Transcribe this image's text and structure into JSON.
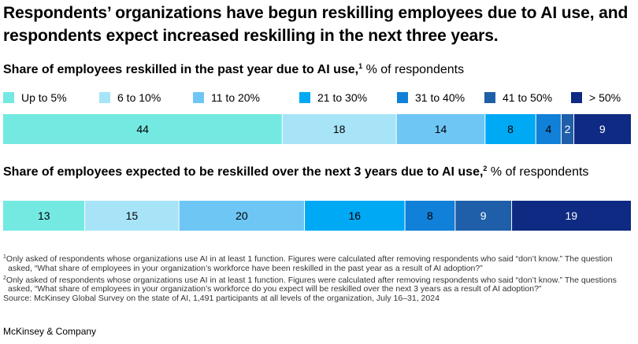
{
  "title": "Respondents’ organizations have begun reskilling employees due to AI use, and respondents expect increased reskilling in the next three years.",
  "legend": [
    {
      "label": "Up to 5%",
      "color": "#74e9e2"
    },
    {
      "label": "6 to 10%",
      "color": "#a8e4f7"
    },
    {
      "label": "11 to 20%",
      "color": "#6ec6f5"
    },
    {
      "label": "21 to 30%",
      "color": "#00a9f4"
    },
    {
      "label": "31 to 40%",
      "color": "#1080d8"
    },
    {
      "label": "41 to 50%",
      "color": "#1f5ea8"
    },
    {
      "label": "> 50%",
      "color": "#0f2a83"
    }
  ],
  "chart_data": [
    {
      "type": "bar",
      "orientation": "horizontal-stacked-100",
      "title": "Share of employees reskilled in the past year due to AI use,",
      "title_footnote": "1",
      "unit": "% of respondents",
      "categories": [
        "Up to 5%",
        "6 to 10%",
        "11 to 20%",
        "21 to 30%",
        "31 to 40%",
        "41 to 50%",
        "> 50%"
      ],
      "values": [
        44,
        18,
        14,
        8,
        4,
        2,
        9
      ]
    },
    {
      "type": "bar",
      "orientation": "horizontal-stacked-100",
      "title": "Share of employees expected to be reskilled over the next 3 years due to AI use,",
      "title_footnote": "2",
      "unit": "% of respondents",
      "categories": [
        "Up to 5%",
        "6 to 10%",
        "11 to 20%",
        "21 to 30%",
        "31 to 40%",
        "41 to 50%",
        "> 50%"
      ],
      "values": [
        13,
        15,
        20,
        16,
        8,
        9,
        19
      ]
    }
  ],
  "label_colors": {
    "light": "#000000",
    "dark": "#ffffff"
  },
  "footnotes": {
    "note1_mark": "1",
    "note1": "Only asked of respondents whose organizations use AI in at least 1 function. Figures were calculated after removing respondents who said “don’t know.” The question asked, “What share of employees in your organization’s workforce have been reskilled in the past year as a result of AI adoption?”",
    "note2_mark": "2",
    "note2": "Only asked of respondents whose organizations use AI in at least 1 function. Figures were calculated after removing respondents who said “don’t know.” The questions asked, “What share of employees in your organization’s workforce do you expect will be reskilled over the next 3 years as a result of AI adoption?”",
    "source": "Source: McKinsey Global Survey on the state of AI, 1,491 participants at all levels of the organization, July 16–31, 2024"
  },
  "brand": "McKinsey & Company"
}
